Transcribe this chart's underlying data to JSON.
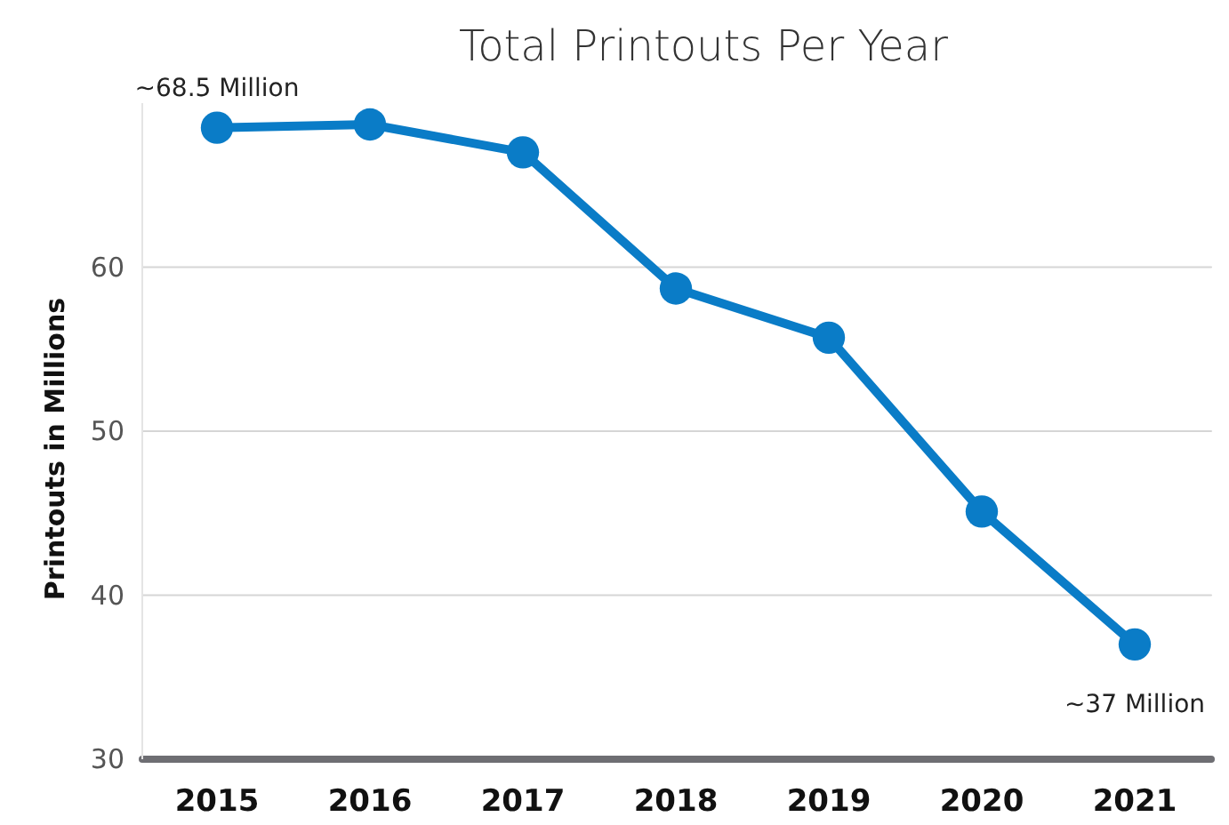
{
  "chart_data": {
    "type": "line",
    "title": "Total Printouts Per Year",
    "ylabel": "Printouts in Millions",
    "categories": [
      "2015",
      "2016",
      "2017",
      "2018",
      "2019",
      "2020",
      "2021"
    ],
    "series": [
      {
        "color": "#0a7cc7",
        "values": [
          68.5,
          68.7,
          67.0,
          58.7,
          55.7,
          45.1,
          37.0
        ]
      }
    ],
    "ylim": [
      30,
      70
    ],
    "yticks": [
      30,
      40,
      50,
      60
    ],
    "grid": "y",
    "marker": "circle",
    "line_style": "solid",
    "annotations": [
      {
        "text": "~68.5 Million",
        "x": "2015",
        "y": 68.5
      },
      {
        "text": "~37 Million",
        "x": "2021",
        "y": 37.0
      }
    ]
  }
}
